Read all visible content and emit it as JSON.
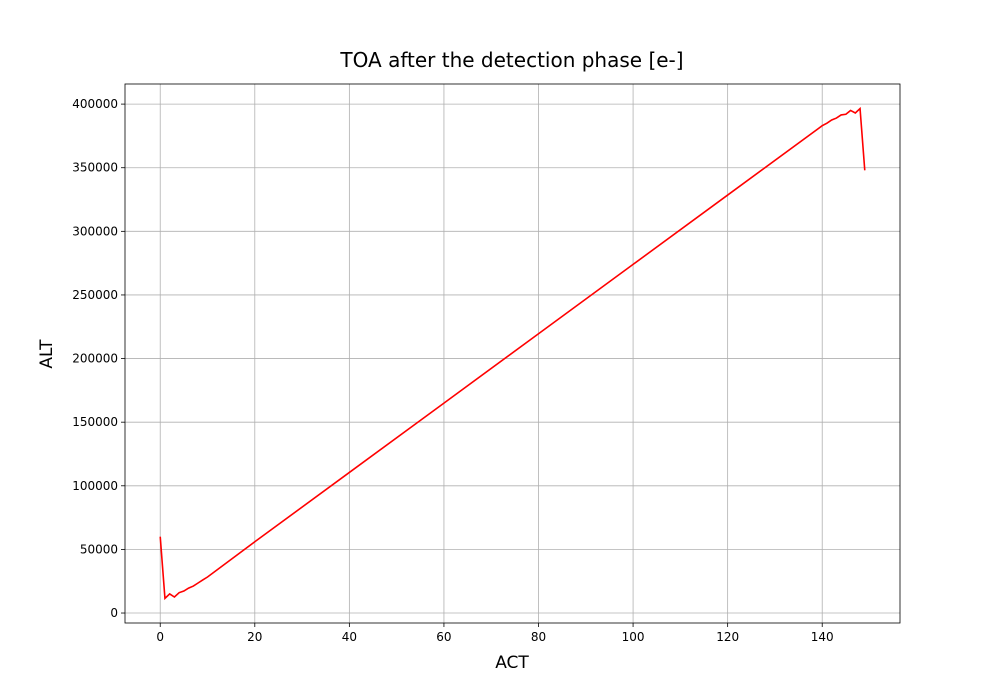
{
  "chart_data": {
    "type": "line",
    "title": "TOA after the detection phase [e-]",
    "xlabel": "ACT",
    "ylabel": "ALT",
    "x": [
      0,
      1,
      2,
      3,
      4,
      5,
      6,
      7,
      8,
      9,
      10,
      20,
      40,
      60,
      80,
      100,
      120,
      140,
      141,
      142,
      143,
      144,
      145,
      146,
      147,
      148,
      149
    ],
    "series": [
      {
        "name": "TOA",
        "color": "#ff0000",
        "values": [
          60000,
          11500,
          15000,
          12600,
          16000,
          17300,
          19600,
          21200,
          23600,
          26000,
          28300,
          56000,
          110500,
          165000,
          219500,
          274000,
          328500,
          383000,
          385000,
          387500,
          389000,
          391500,
          392000,
          395000,
          393000,
          396500,
          348000
        ]
      }
    ],
    "xlim": [
      -7.45,
      156.45
    ],
    "xticks": [
      0,
      20,
      40,
      60,
      80,
      100,
      120,
      140
    ],
    "ylim": [
      -7840,
      415800
    ],
    "yticks": [
      0,
      50000,
      100000,
      150000,
      200000,
      250000,
      300000,
      350000,
      400000
    ],
    "grid": true
  }
}
